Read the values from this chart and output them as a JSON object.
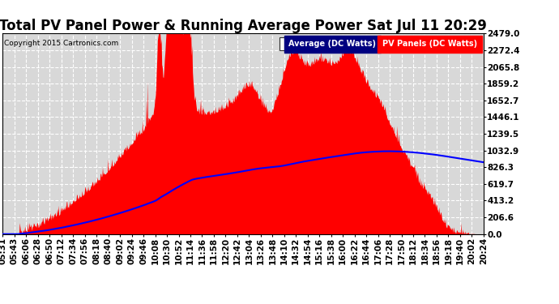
{
  "title": "Total PV Panel Power & Running Average Power Sat Jul 11 20:29",
  "copyright": "Copyright 2015 Cartronics.com",
  "legend_avg": "Average (DC Watts)",
  "legend_pv": "PV Panels (DC Watts)",
  "ymin": 0.0,
  "ymax": 2479.0,
  "yticks": [
    0.0,
    206.6,
    413.2,
    619.7,
    826.3,
    1032.9,
    1239.5,
    1446.1,
    1652.7,
    1859.2,
    2065.8,
    2272.4,
    2479.0
  ],
  "bg_color": "#ffffff",
  "plot_bg_color": "#d8d8d8",
  "grid_color": "#ffffff",
  "fill_color": "#ff0000",
  "line_color": "#0000ff",
  "avg_bg_color": "#000080",
  "pv_bg_color": "#ff0000",
  "title_fontsize": 12,
  "tick_fontsize": 7.5,
  "xtick_labels": [
    "05:31",
    "05:43",
    "06:06",
    "06:28",
    "06:50",
    "07:12",
    "07:34",
    "07:56",
    "08:18",
    "08:40",
    "09:02",
    "09:24",
    "09:46",
    "10:08",
    "10:30",
    "10:52",
    "11:14",
    "11:36",
    "11:58",
    "12:20",
    "12:42",
    "13:04",
    "13:26",
    "13:48",
    "14:10",
    "14:32",
    "14:54",
    "15:16",
    "15:38",
    "16:00",
    "16:22",
    "16:44",
    "17:06",
    "17:28",
    "17:50",
    "18:12",
    "18:34",
    "18:56",
    "19:18",
    "19:40",
    "20:02",
    "20:24"
  ]
}
